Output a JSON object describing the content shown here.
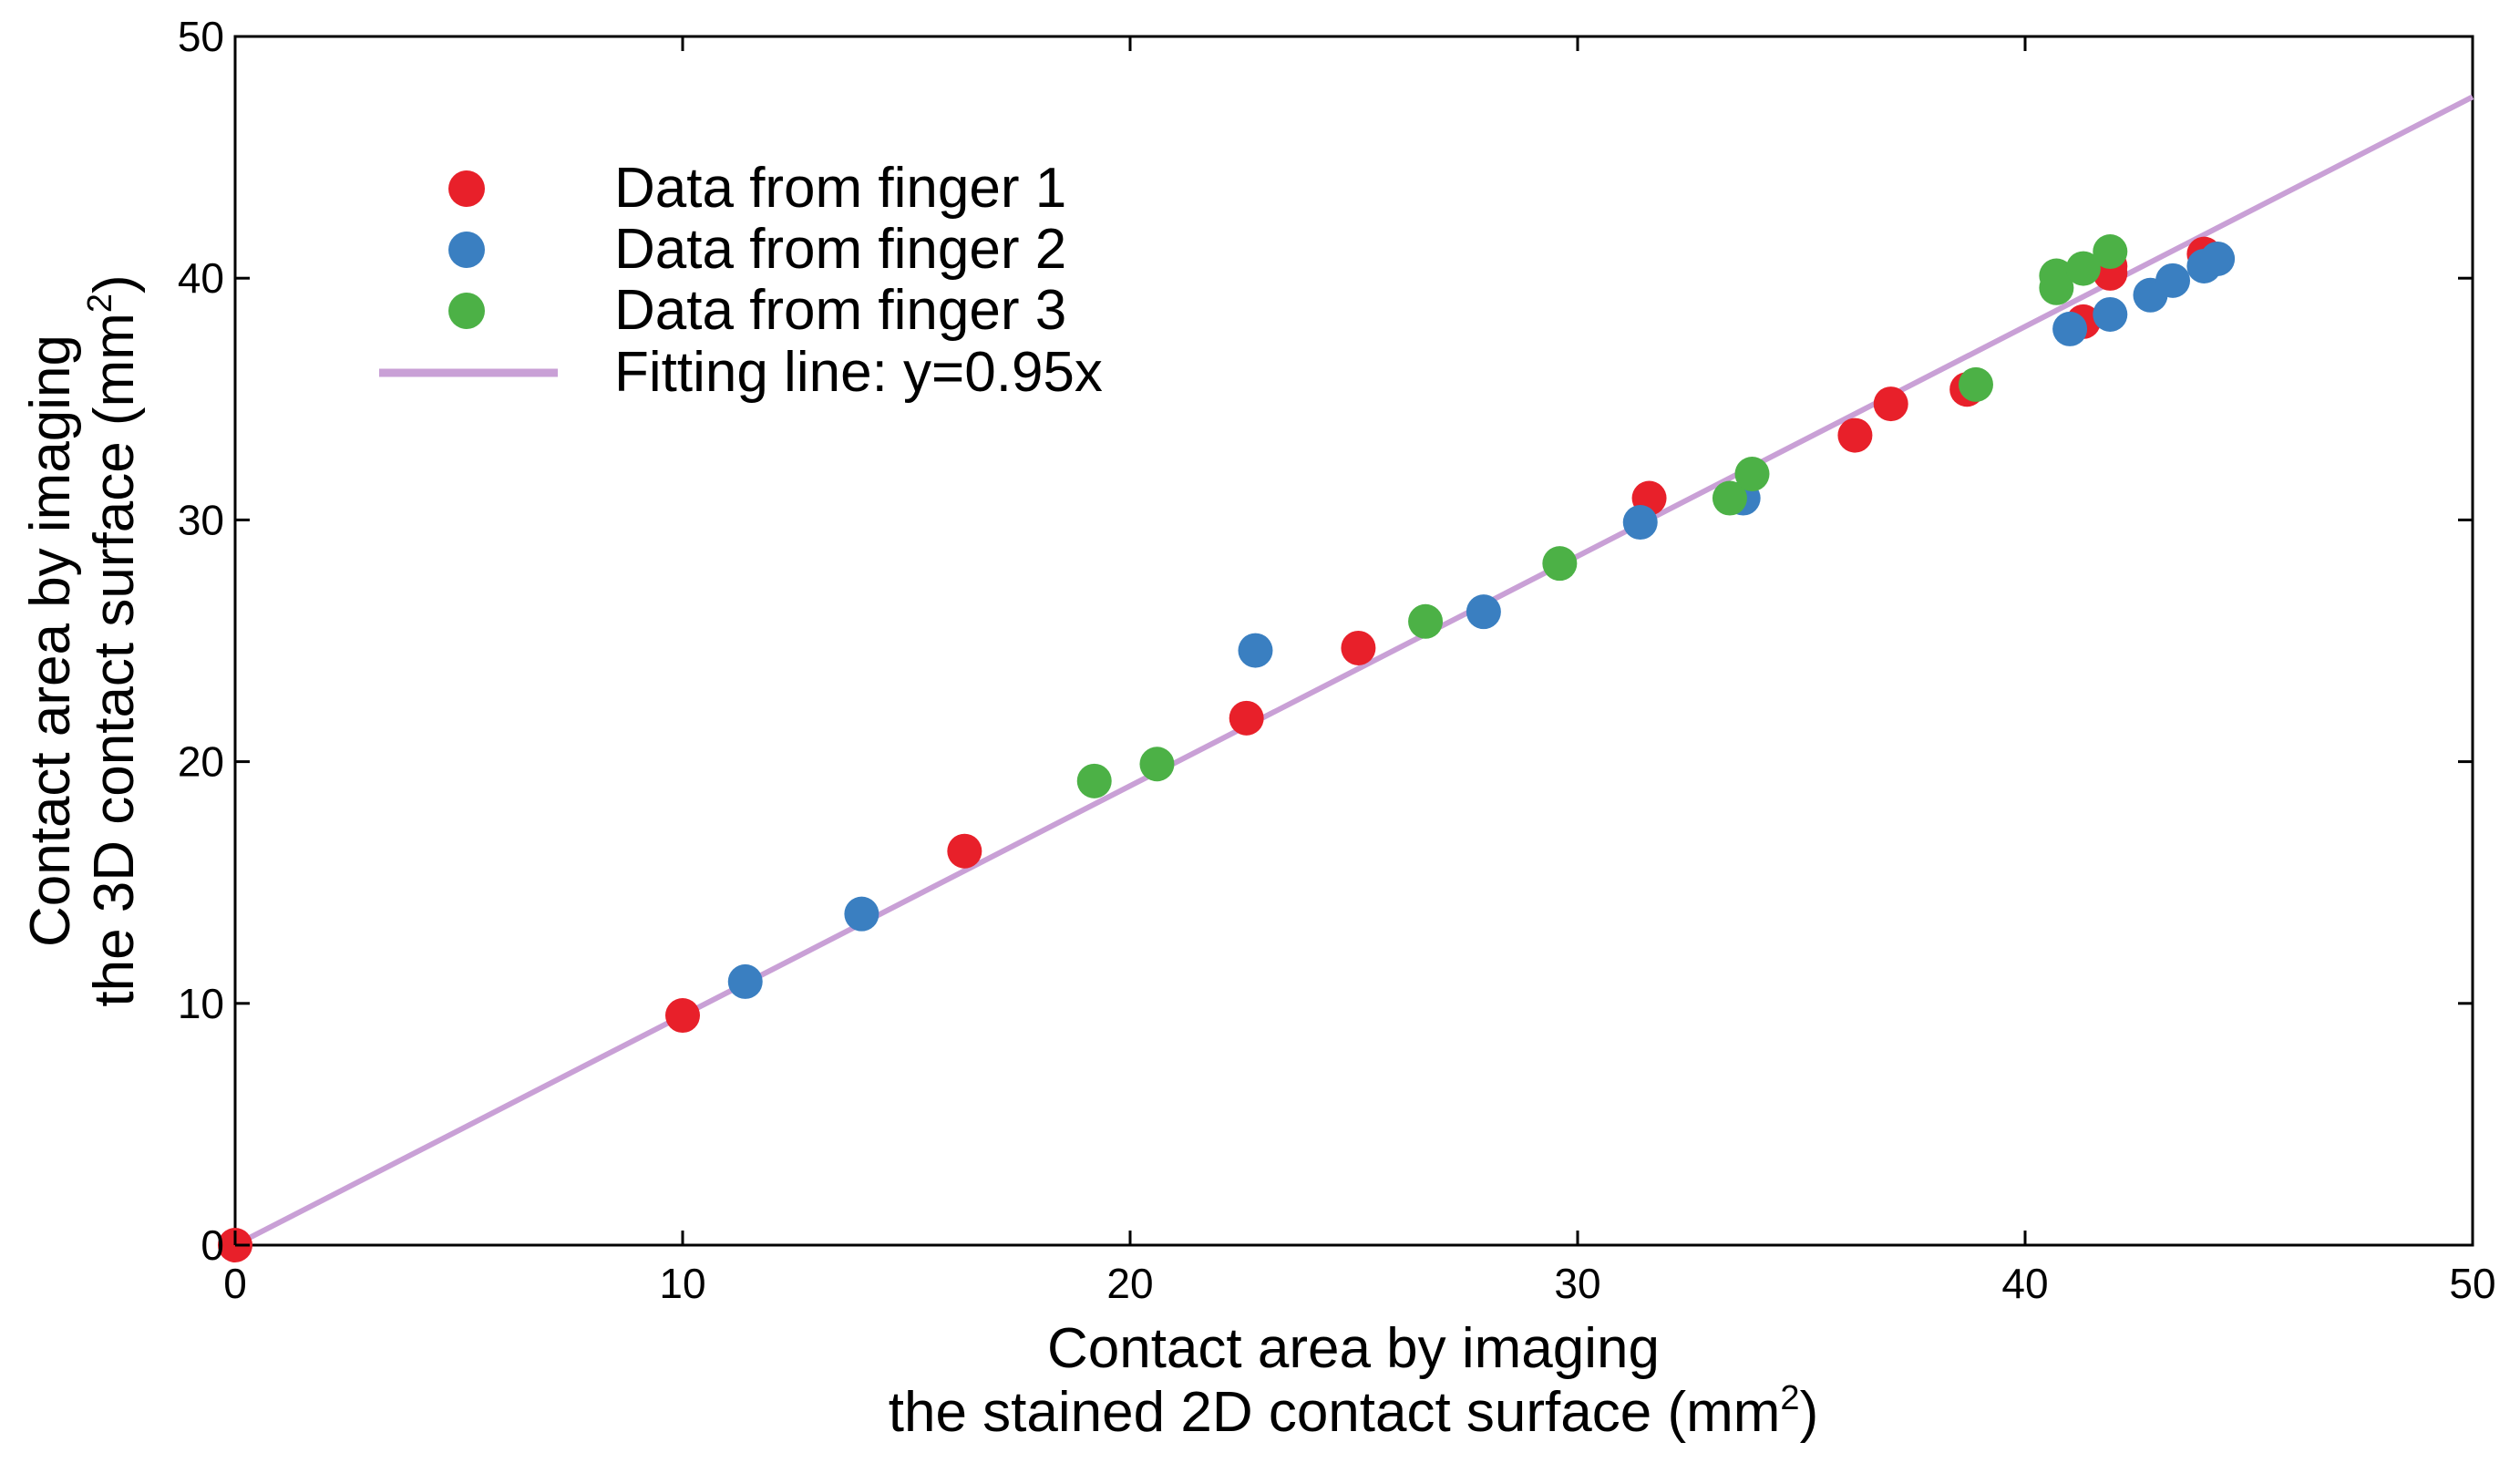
{
  "chart_data": {
    "type": "scatter",
    "title": "",
    "xlabel_lines": [
      "Contact area by imaging",
      "the stained 2D contact surface (mm",
      "2",
      ")"
    ],
    "ylabel_lines": [
      "Contact area by imaging",
      "the 3D contact surface (mm",
      "2",
      ")"
    ],
    "xlim": [
      0,
      50
    ],
    "ylim": [
      0,
      50
    ],
    "xticks": [
      "0",
      "10",
      "20",
      "30",
      "40",
      "50"
    ],
    "yticks": [
      "0",
      "10",
      "20",
      "30",
      "40",
      "50"
    ],
    "xtick_values": [
      0,
      10,
      20,
      30,
      40,
      50
    ],
    "ytick_values": [
      0,
      10,
      20,
      30,
      40,
      50
    ],
    "grid": false,
    "legend_position": "top-left",
    "series": [
      {
        "name": "Data from finger 1",
        "color": "#e8202a",
        "points": [
          [
            0,
            0
          ],
          [
            10.0,
            9.5
          ],
          [
            16.3,
            16.3
          ],
          [
            22.6,
            21.8
          ],
          [
            25.1,
            24.7
          ],
          [
            31.6,
            30.9
          ],
          [
            36.2,
            33.5
          ],
          [
            37.0,
            34.8
          ],
          [
            38.7,
            35.4
          ],
          [
            41.3,
            38.2
          ],
          [
            41.9,
            40.2
          ],
          [
            41.9,
            40.5
          ],
          [
            44.0,
            41.0
          ]
        ]
      },
      {
        "name": "Data from finger 2",
        "color": "#3a7fc1",
        "points": [
          [
            11.4,
            10.9
          ],
          [
            14.0,
            13.7
          ],
          [
            22.8,
            24.6
          ],
          [
            27.9,
            26.2
          ],
          [
            31.4,
            29.9
          ],
          [
            33.7,
            30.9
          ],
          [
            41.0,
            37.9
          ],
          [
            41.9,
            38.5
          ],
          [
            42.8,
            39.3
          ],
          [
            43.3,
            39.9
          ],
          [
            44.0,
            40.5
          ],
          [
            44.3,
            40.8
          ]
        ]
      },
      {
        "name": "Data from finger 3",
        "color": "#4cb146",
        "points": [
          [
            19.2,
            19.2
          ],
          [
            20.6,
            19.9
          ],
          [
            26.6,
            25.8
          ],
          [
            29.6,
            28.2
          ],
          [
            33.4,
            30.9
          ],
          [
            33.9,
            31.9
          ],
          [
            38.9,
            35.6
          ],
          [
            40.7,
            39.6
          ],
          [
            40.7,
            40.1
          ],
          [
            41.3,
            40.4
          ],
          [
            41.9,
            41.1
          ]
        ]
      }
    ],
    "fit_line": {
      "name": "Fitting line: y=0.95x",
      "slope": 0.95,
      "x_range": [
        0,
        50
      ],
      "color": "#c9a0d6"
    }
  }
}
